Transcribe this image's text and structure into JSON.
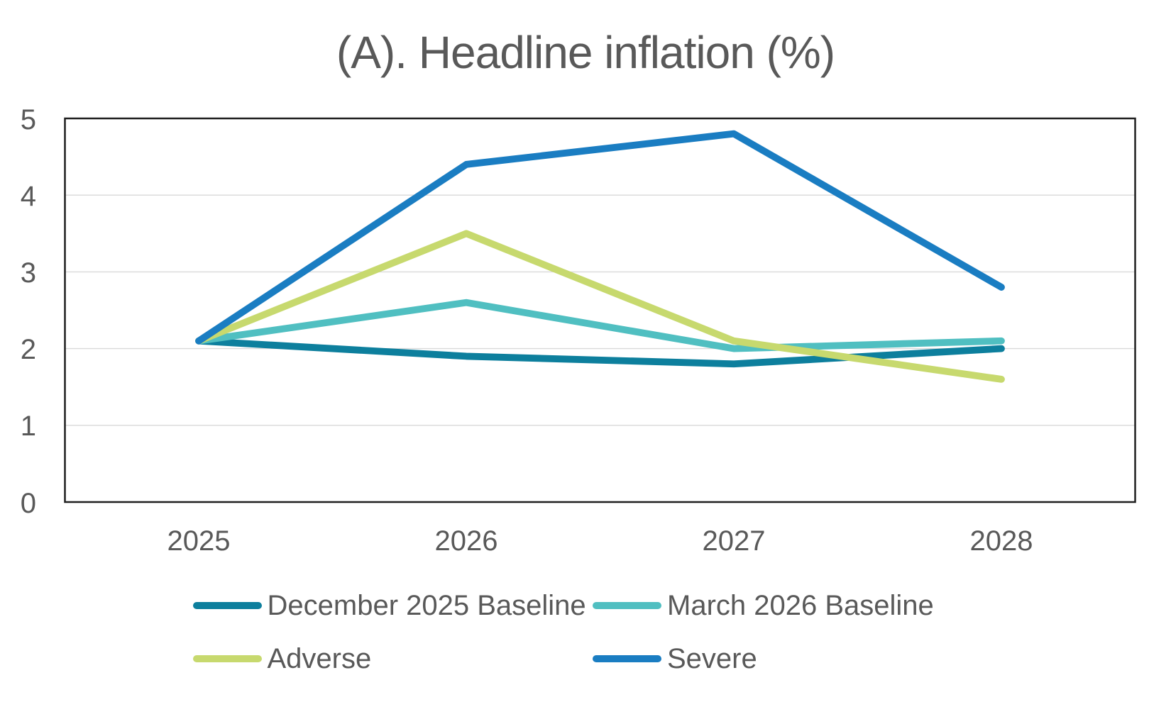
{
  "chart_data": {
    "type": "line",
    "title": "(A). Headline inflation (%)",
    "categories": [
      "2025",
      "2026",
      "2027",
      "2028"
    ],
    "series": [
      {
        "name": "December 2025 Baseline",
        "color": "#0d7f9d",
        "values": [
          2.1,
          1.9,
          1.8,
          2.0
        ]
      },
      {
        "name": "March 2026 Baseline",
        "color": "#50bfc1",
        "values": [
          2.1,
          2.6,
          2.0,
          2.1
        ]
      },
      {
        "name": "Adverse",
        "color": "#c7d96e",
        "values": [
          2.1,
          3.5,
          2.1,
          1.6
        ]
      },
      {
        "name": "Severe",
        "color": "#1a7dc2",
        "values": [
          2.1,
          4.4,
          4.8,
          2.8
        ]
      }
    ],
    "xlabel": "",
    "ylabel": "",
    "ylim": [
      0,
      5
    ],
    "yticks": [
      0,
      1,
      2,
      3,
      4,
      5
    ],
    "grid": true,
    "legend_position": "bottom"
  },
  "styles": {
    "background_color": "#ffffff",
    "text_color": "#595959",
    "gridline_color": "#d9d9d9",
    "plot_border_color": "#1f1f1f"
  }
}
